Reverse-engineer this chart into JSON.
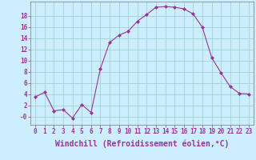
{
  "x": [
    0,
    1,
    2,
    3,
    4,
    5,
    6,
    7,
    8,
    9,
    10,
    11,
    12,
    13,
    14,
    15,
    16,
    17,
    18,
    19,
    20,
    21,
    22,
    23
  ],
  "y": [
    3.5,
    4.3,
    1.0,
    1.2,
    -0.3,
    2.1,
    0.7,
    8.5,
    13.2,
    14.5,
    15.2,
    17.0,
    18.2,
    19.5,
    19.6,
    19.5,
    19.2,
    18.3,
    15.9,
    10.5,
    7.8,
    5.3,
    4.1,
    4.0
  ],
  "line_color": "#993399",
  "marker": "D",
  "marker_size": 2,
  "background_color": "#cceeff",
  "grid_color": "#99cccc",
  "xlabel": "Windchill (Refroidissement éolien,°C)",
  "xlabel_color": "#993399",
  "xlabel_fontsize": 7,
  "yticks": [
    0,
    2,
    4,
    6,
    8,
    10,
    12,
    14,
    16,
    18
  ],
  "ytick_labels": [
    "-0",
    "2",
    "4",
    "6",
    "8",
    "10",
    "12",
    "14",
    "16",
    "18"
  ],
  "xtick_labels": [
    "0",
    "1",
    "2",
    "3",
    "4",
    "5",
    "6",
    "7",
    "8",
    "9",
    "10",
    "11",
    "12",
    "13",
    "14",
    "15",
    "16",
    "17",
    "18",
    "19",
    "20",
    "21",
    "22",
    "23"
  ],
  "tick_color": "#993399",
  "tick_fontsize": 5.5,
  "ylim": [
    -1.5,
    20.5
  ],
  "xlim": [
    -0.5,
    23.5
  ]
}
